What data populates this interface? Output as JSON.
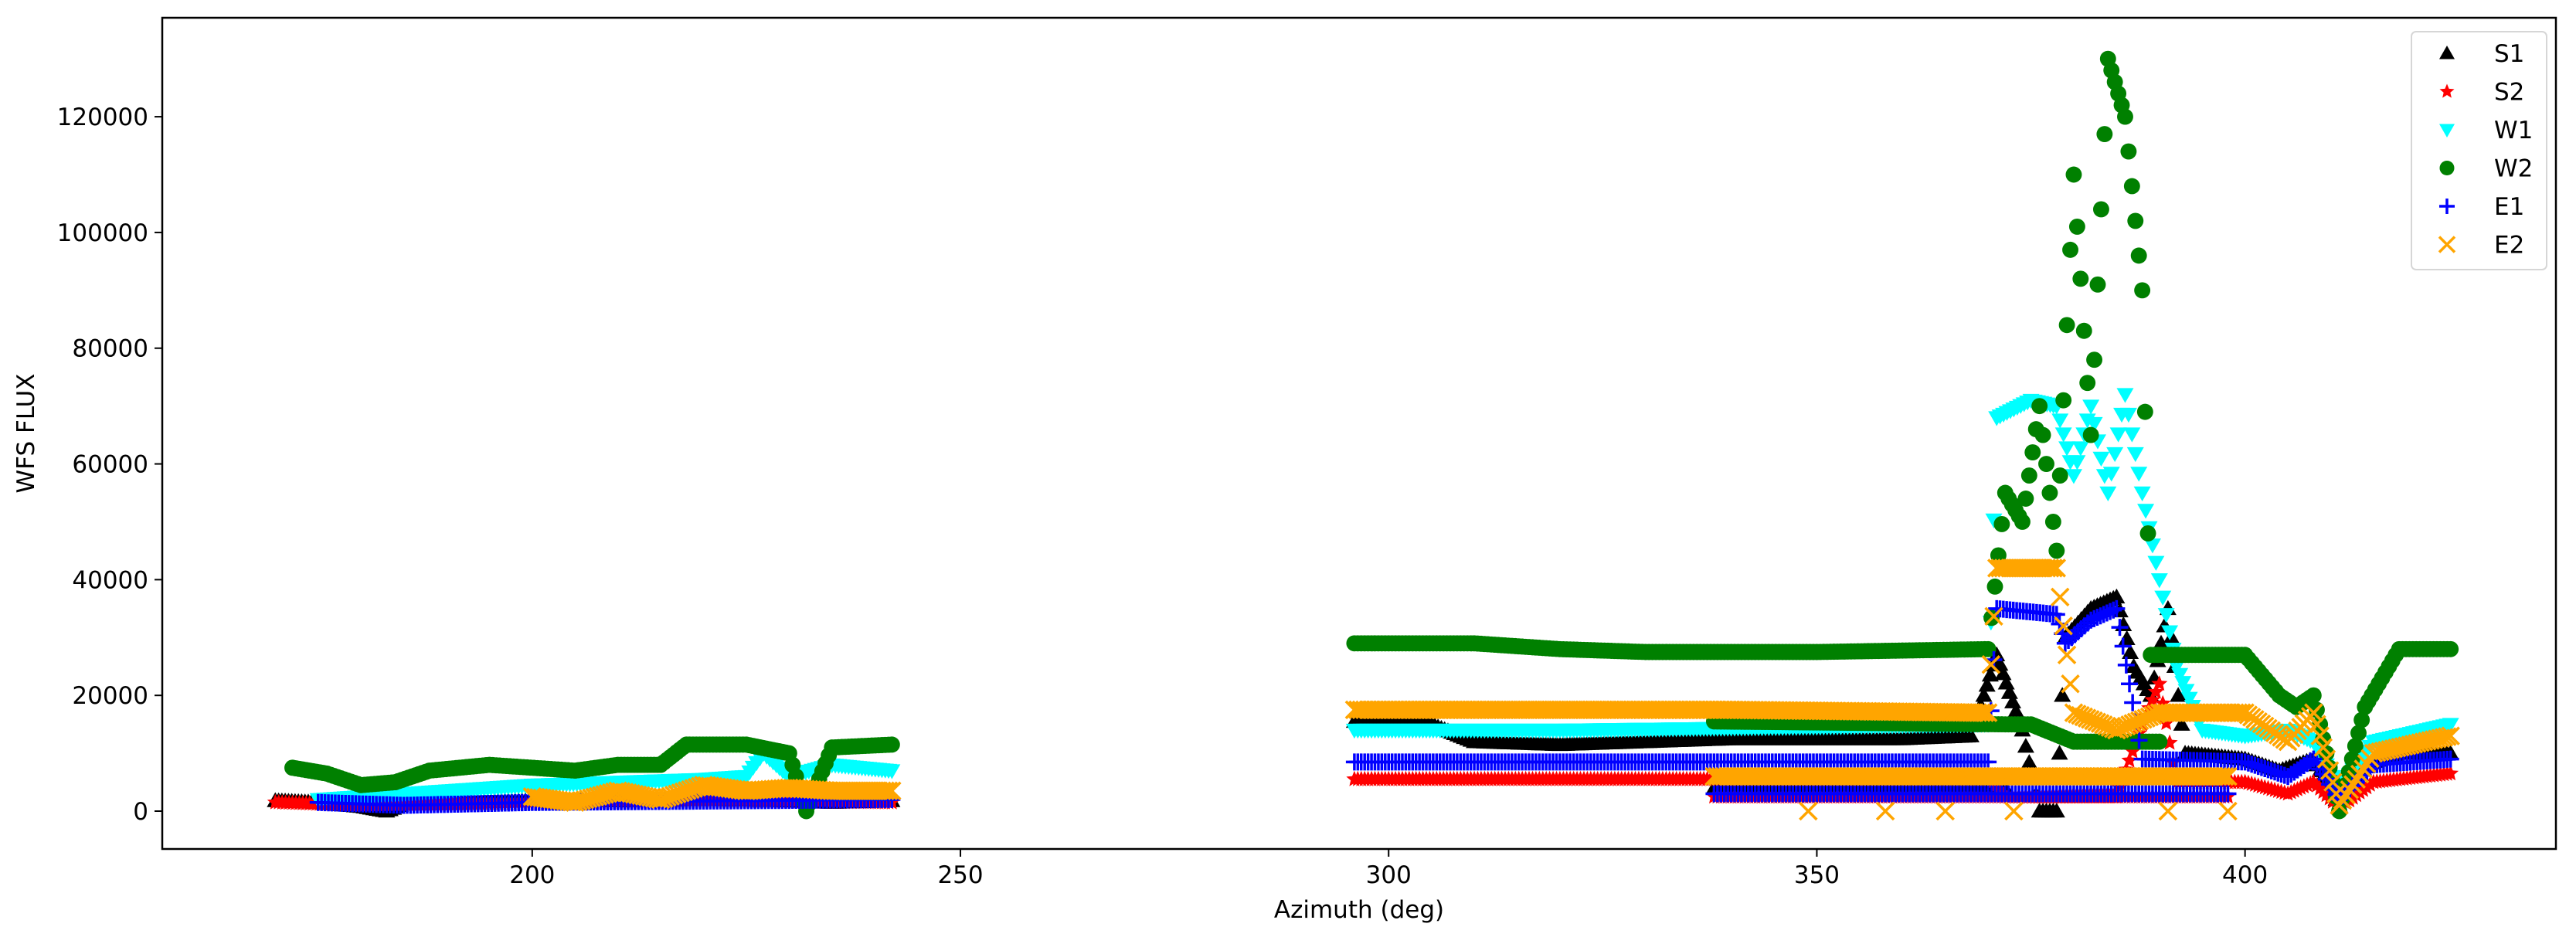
{
  "chart_data": {
    "type": "scatter",
    "title": "",
    "xlabel": "Azimuth (deg)",
    "ylabel": "WFS FLUX",
    "xlim": [
      156.8,
      436.3
    ],
    "ylim": [
      -6540,
      137100
    ],
    "xticks": [
      200,
      250,
      300,
      350,
      400
    ],
    "yticks": [
      0,
      20000,
      40000,
      60000,
      80000,
      100000,
      120000
    ],
    "grid": false,
    "legend_position": "top-right",
    "series": [
      {
        "name": "S1",
        "marker": "triangle-up",
        "color": "#000000",
        "segments": [
          [
            [
              170,
              1800
            ],
            [
              175,
              1500
            ],
            [
              180,
              800
            ],
            [
              183,
              0
            ],
            [
              185,
              1200
            ],
            [
              190,
              1500
            ],
            [
              200,
              1800
            ],
            [
              210,
              1800
            ],
            [
              220,
              2000
            ],
            [
              230,
              1800
            ],
            [
              235,
              1500
            ],
            [
              242,
              1800
            ]
          ],
          [
            [
              296,
              15500
            ],
            [
              305,
              15000
            ],
            [
              310,
              12000
            ],
            [
              320,
              11500
            ],
            [
              330,
              12000
            ],
            [
              340,
              12500
            ],
            [
              350,
              12500
            ],
            [
              360,
              12500
            ],
            [
              368,
              13000
            ],
            [
              371,
              27000
            ],
            [
              374,
              14000
            ],
            [
              376,
              0
            ],
            [
              378,
              0
            ],
            [
              379,
              30000
            ],
            [
              382,
              35000
            ],
            [
              385,
              37000
            ],
            [
              387,
              25000
            ],
            [
              389,
              20000
            ],
            [
              391,
              35000
            ],
            [
              393,
              10000
            ],
            [
              400,
              9000
            ],
            [
              404,
              7000
            ],
            [
              408,
              9000
            ],
            [
              411,
              1000
            ],
            [
              414,
              8000
            ],
            [
              418,
              10000
            ],
            [
              424,
              10000
            ]
          ],
          [
            [
              338,
              4000
            ],
            [
              372,
              4000
            ]
          ]
        ]
      },
      {
        "name": "S2",
        "marker": "star",
        "color": "#ff0000",
        "segments": [
          [
            [
              170,
              1500
            ],
            [
              180,
              1000
            ],
            [
              190,
              1200
            ],
            [
              200,
              1500
            ],
            [
              220,
              1800
            ],
            [
              242,
              1500
            ]
          ],
          [
            [
              296,
              5500
            ],
            [
              340,
              5500
            ],
            [
              370,
              5500
            ],
            [
              372,
              2500
            ],
            [
              385,
              2500
            ],
            [
              388,
              15000
            ],
            [
              390,
              22000
            ],
            [
              392,
              5000
            ],
            [
              400,
              5000
            ],
            [
              405,
              3000
            ],
            [
              408,
              5000
            ],
            [
              411,
              500
            ],
            [
              415,
              5000
            ],
            [
              424,
              6500
            ]
          ],
          [
            [
              338,
              2500
            ],
            [
              372,
              2500
            ],
            [
              398,
              2500
            ]
          ]
        ]
      },
      {
        "name": "W1",
        "marker": "triangle-down",
        "color": "#00ffff",
        "segments": [
          [
            [
              175,
              2000
            ],
            [
              190,
              3500
            ],
            [
              200,
              4500
            ],
            [
              210,
              5000
            ],
            [
              220,
              5500
            ],
            [
              225,
              6000
            ],
            [
              227,
              10000
            ],
            [
              230,
              6000
            ],
            [
              235,
              8000
            ],
            [
              242,
              7000
            ]
          ],
          [
            [
              296,
              14000
            ],
            [
              320,
              14000
            ],
            [
              350,
              14500
            ],
            [
              370,
              15000
            ],
            [
              371,
              68000
            ],
            [
              375,
              71000
            ],
            [
              378,
              70000
            ],
            [
              380,
              58000
            ],
            [
              382,
              70000
            ],
            [
              384,
              55000
            ],
            [
              386,
              72000
            ],
            [
              388,
              55000
            ],
            [
              390,
              40000
            ],
            [
              392,
              25000
            ],
            [
              395,
              14000
            ],
            [
              400,
              13000
            ],
            [
              405,
              14000
            ],
            [
              408,
              12000
            ],
            [
              411,
              4000
            ],
            [
              415,
              12000
            ],
            [
              424,
              15000
            ]
          ]
        ]
      },
      {
        "name": "W2",
        "marker": "circle",
        "color": "#008000",
        "segments": [
          [
            [
              172,
              7500
            ],
            [
              176,
              6500
            ],
            [
              180,
              4500
            ],
            [
              184,
              5000
            ],
            [
              188,
              7000
            ],
            [
              195,
              8000
            ],
            [
              205,
              7000
            ],
            [
              210,
              8000
            ],
            [
              215,
              8000
            ],
            [
              218,
              11500
            ],
            [
              225,
              11500
            ],
            [
              230,
              10000
            ],
            [
              232,
              0
            ],
            [
              235,
              11000
            ],
            [
              242,
              11500
            ]
          ],
          [
            [
              296,
              29000
            ],
            [
              310,
              29000
            ],
            [
              320,
              28000
            ],
            [
              330,
              27500
            ],
            [
              350,
              27500
            ],
            [
              370,
              28000
            ],
            [
              372,
              55000
            ],
            [
              374,
              50000
            ],
            [
              376,
              70000
            ],
            [
              378,
              45000
            ],
            [
              380,
              110000
            ],
            [
              382,
              65000
            ],
            [
              384,
              130000
            ],
            [
              386,
              120000
            ],
            [
              388,
              90000
            ],
            [
              389,
              27000
            ],
            [
              395,
              27000
            ],
            [
              400,
              27000
            ],
            [
              404,
              20000
            ],
            [
              406,
              18000
            ],
            [
              408,
              20000
            ],
            [
              411,
              0
            ],
            [
              414,
              18000
            ],
            [
              418,
              28000
            ],
            [
              424,
              28000
            ]
          ],
          [
            [
              338,
              15500
            ],
            [
              372,
              15000
            ],
            [
              375,
              15000
            ],
            [
              380,
              12000
            ],
            [
              390,
              12000
            ]
          ]
        ]
      },
      {
        "name": "E1",
        "marker": "plus",
        "color": "#0000ff",
        "segments": [
          [
            [
              175,
              1500
            ],
            [
              185,
              1000
            ],
            [
              200,
              1500
            ],
            [
              242,
              2000
            ]
          ],
          [
            [
              296,
              8500
            ],
            [
              340,
              8500
            ],
            [
              370,
              8500
            ],
            [
              371,
              35000
            ],
            [
              378,
              34000
            ],
            [
              379,
              29000
            ],
            [
              382,
              33000
            ],
            [
              385,
              35000
            ],
            [
              388,
              9000
            ],
            [
              400,
              8500
            ],
            [
              405,
              6000
            ],
            [
              408,
              9000
            ],
            [
              411,
              2000
            ],
            [
              415,
              8000
            ],
            [
              424,
              9000
            ]
          ],
          [
            [
              338,
              3000
            ],
            [
              372,
              3000
            ],
            [
              398,
              3000
            ]
          ]
        ]
      },
      {
        "name": "E2",
        "marker": "x",
        "color": "#ffa500",
        "segments": [
          [
            [
              200,
              2500
            ],
            [
              205,
              1500
            ],
            [
              210,
              3500
            ],
            [
              215,
              2000
            ],
            [
              220,
              4500
            ],
            [
              225,
              3500
            ],
            [
              230,
              4000
            ],
            [
              235,
              3500
            ],
            [
              242,
              3500
            ]
          ],
          [
            [
              296,
              17500
            ],
            [
              340,
              17500
            ],
            [
              370,
              17000
            ],
            [
              371,
              42000
            ],
            [
              378,
              42000
            ],
            [
              380,
              17000
            ],
            [
              385,
              14000
            ],
            [
              390,
              17000
            ],
            [
              400,
              17000
            ],
            [
              405,
              12000
            ],
            [
              408,
              17000
            ],
            [
              411,
              1000
            ],
            [
              415,
              10000
            ],
            [
              424,
              13000
            ]
          ],
          [
            [
              338,
              6000
            ],
            [
              372,
              6000
            ],
            [
              398,
              6000
            ]
          ],
          [
            [
              349,
              0
            ]
          ],
          [
            [
              358,
              0
            ]
          ],
          [
            [
              365,
              0
            ]
          ],
          [
            [
              373,
              0
            ]
          ],
          [
            [
              391,
              0
            ]
          ],
          [
            [
              398,
              0
            ]
          ]
        ]
      }
    ]
  }
}
